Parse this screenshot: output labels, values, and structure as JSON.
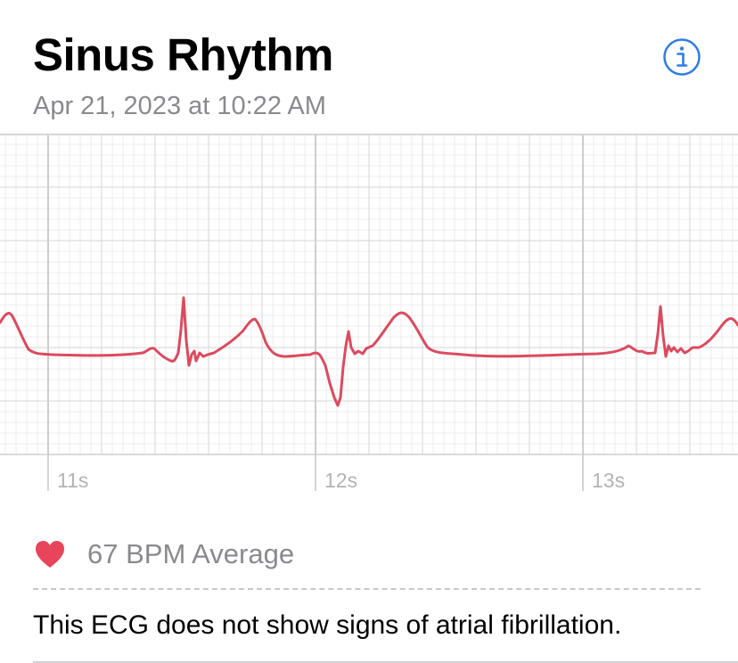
{
  "header": {
    "title": "Sinus Rhythm",
    "date": "Apr 21, 2023 at 10:22 AM",
    "info_icon": "info-circle-icon"
  },
  "ecg_chart": {
    "time_labels": [
      "11s",
      "12s",
      "13s"
    ],
    "trace_color": "#dc4a5e"
  },
  "summary": {
    "heart_icon": "heart-icon",
    "heart_color": "#e8445a",
    "bpm_text": "67 BPM Average",
    "result_text": "This ECG does not show signs of atrial fibrillation."
  },
  "colors": {
    "accent": "#2f7de1",
    "secondary_text": "#8a8a8e"
  }
}
